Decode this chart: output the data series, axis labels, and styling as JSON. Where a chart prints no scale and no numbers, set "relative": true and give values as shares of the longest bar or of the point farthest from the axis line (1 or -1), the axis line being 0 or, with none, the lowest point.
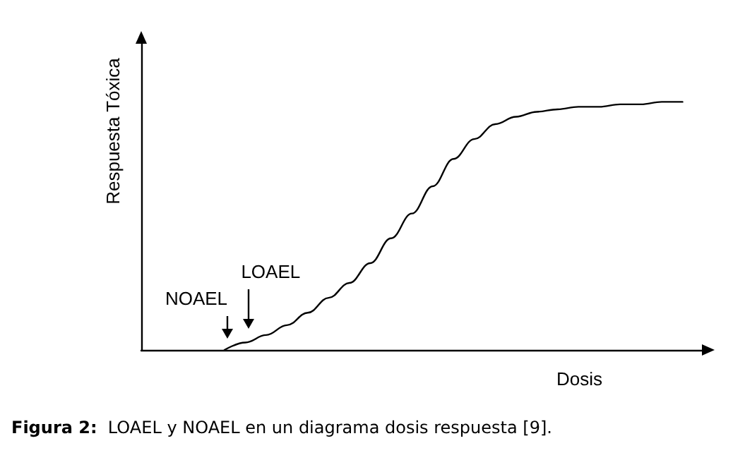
{
  "chart_data": {
    "type": "line",
    "relative": true,
    "xlabel": "Dosis",
    "ylabel": "Respuesta Tóxica",
    "categories": [
      null,
      null,
      null,
      null,
      null,
      null,
      null,
      null,
      null,
      null,
      null,
      null,
      null,
      null,
      null,
      null,
      null,
      null,
      null,
      null,
      null,
      null,
      null,
      null,
      null,
      null,
      null,
      null
    ],
    "series": [
      {
        "color": "#000000",
        "values": [
          null,
          null,
          null,
          null,
          0,
          0.03,
          0.06,
          0.1,
          0.15,
          0.21,
          0.27,
          0.35,
          0.45,
          0.55,
          0.66,
          0.77,
          0.85,
          0.91,
          0.94,
          0.96,
          0.97,
          0.98,
          0.98,
          0.99,
          0.99,
          1.0,
          1.0,
          null
        ]
      }
    ],
    "marker": "none",
    "line_style": "solid",
    "grid": false,
    "annotations": [
      "NOAEL",
      "LOAEL",
      "Figura 2:  LOAEL y NOAEL en un diagrama dosis respuesta [9]."
    ]
  }
}
